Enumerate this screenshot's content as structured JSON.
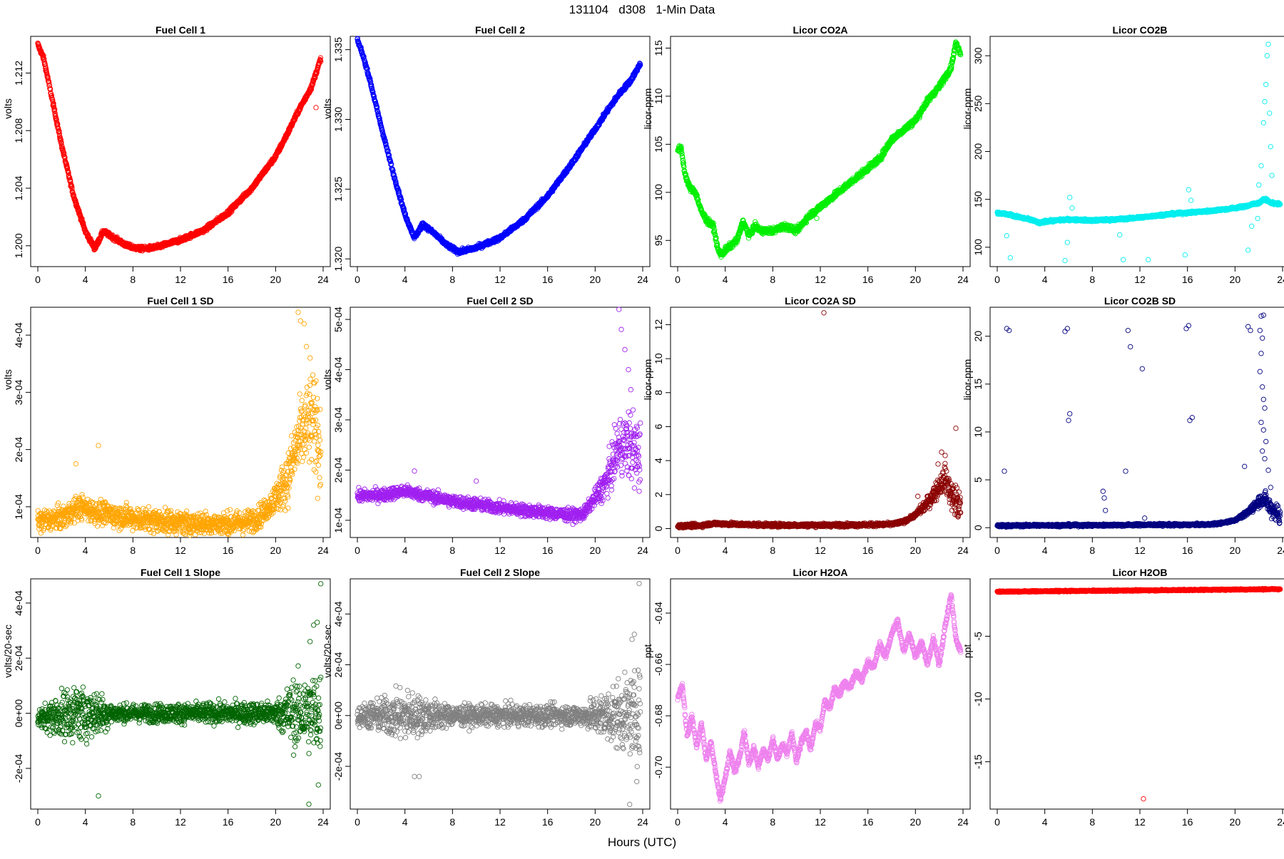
{
  "page": {
    "title": "131104   d308   1-Min Data",
    "xlabel": "Hours (UTC)"
  },
  "xaxis": {
    "range": [
      0,
      24
    ],
    "ticks": [
      0,
      4,
      8,
      12,
      16,
      20,
      24
    ]
  },
  "chart_data": [
    {
      "type": "scatter",
      "title": "Fuel Cell 1",
      "ylabel": "volts",
      "color": "#ff0000",
      "ylim": [
        1.1987,
        1.2144
      ],
      "yticks": [
        1.2,
        1.204,
        1.208,
        1.212
      ],
      "ytick_labels": [
        "1.200",
        "1.204",
        "1.208",
        "1.212"
      ],
      "x": [
        0,
        0.5,
        1,
        2,
        3,
        4,
        4.8,
        5.5,
        6.5,
        7.5,
        8.5,
        9,
        10,
        12,
        14,
        16,
        18,
        20,
        21,
        22,
        23,
        23.8
      ],
      "y": [
        1.214,
        1.213,
        1.211,
        1.207,
        1.2035,
        1.201,
        1.1998,
        1.201,
        1.2005,
        1.2,
        1.1998,
        1.1998,
        1.1999,
        1.2004,
        1.2011,
        1.2023,
        1.204,
        1.2062,
        1.2078,
        1.2095,
        1.211,
        1.213
      ],
      "noise": 0.00015,
      "outliers": [
        [
          23.4,
          1.2096
        ]
      ]
    },
    {
      "type": "scatter",
      "title": "Fuel Cell 2",
      "ylabel": "volts",
      "color": "#0000ff",
      "ylim": [
        1.3196,
        1.3358
      ],
      "yticks": [
        1.32,
        1.325,
        1.33,
        1.335
      ],
      "ytick_labels": [
        "1.320",
        "1.325",
        "1.330",
        "1.335"
      ],
      "x": [
        0,
        0.5,
        1,
        2,
        3,
        4,
        4.8,
        5.5,
        6.5,
        7.5,
        8.5,
        9,
        10,
        12,
        14,
        16,
        18,
        20,
        21,
        22,
        23,
        23.8
      ],
      "y": [
        1.3357,
        1.3345,
        1.333,
        1.3295,
        1.3262,
        1.3232,
        1.3215,
        1.3225,
        1.3218,
        1.321,
        1.3205,
        1.3206,
        1.3208,
        1.3215,
        1.3228,
        1.3245,
        1.3268,
        1.3293,
        1.3306,
        1.3318,
        1.3328,
        1.334
      ],
      "noise": 0.00015,
      "outliers": []
    },
    {
      "type": "scatter",
      "title": "Licor CO2A",
      "ylabel": "licor-ppm",
      "color": "#00ee00",
      "ylim": [
        92.5,
        116
      ],
      "yticks": [
        95,
        100,
        105,
        110,
        115
      ],
      "ytick_labels": [
        "95",
        "100",
        "105",
        "110",
        "115"
      ],
      "x": [
        0,
        0.3,
        0.6,
        1,
        1.5,
        2,
        2.5,
        3,
        3.4,
        3.7,
        4,
        5,
        5.5,
        6,
        6.5,
        7,
        8,
        9,
        10,
        11,
        12,
        13,
        14,
        15,
        16,
        17,
        18,
        19,
        20,
        21,
        22,
        23,
        23.4,
        23.8
      ],
      "y": [
        104.5,
        104.5,
        102,
        100.5,
        100,
        98,
        97,
        96.5,
        94,
        93.5,
        94,
        95,
        97,
        95.5,
        96.5,
        96,
        96,
        96.5,
        96,
        97.5,
        98.5,
        99.5,
        100.5,
        101.5,
        102.5,
        103.5,
        105.5,
        106.5,
        107.5,
        109.5,
        111,
        113,
        115.5,
        114.5
      ],
      "noise": 0.3,
      "outliers": [
        [
          11.7,
          97.3
        ]
      ]
    },
    {
      "type": "scatter",
      "title": "Licor CO2B",
      "ylabel": "licor-ppm",
      "color": "#00eeee",
      "ylim": [
        82,
        318
      ],
      "yticks": [
        100,
        150,
        200,
        250,
        300
      ],
      "ytick_labels": [
        "100",
        "150",
        "200",
        "250",
        "300"
      ],
      "x": [
        0,
        1,
        2,
        3,
        3.6,
        4,
        6,
        8,
        10,
        12,
        14,
        16,
        18,
        20,
        21,
        21.5,
        22,
        22.3,
        22.6,
        22.9,
        23.2,
        23.8
      ],
      "y": [
        136,
        134,
        131,
        128,
        125,
        127,
        129,
        128,
        129,
        131,
        134,
        136,
        138,
        141,
        143,
        145,
        146,
        149,
        150,
        147,
        146,
        145
      ],
      "noise": 1.2,
      "outliers": [
        [
          0.8,
          112
        ],
        [
          1.1,
          89
        ],
        [
          5.7,
          86
        ],
        [
          5.9,
          105
        ],
        [
          6.1,
          152
        ],
        [
          6.3,
          141
        ],
        [
          10.3,
          113
        ],
        [
          10.6,
          87
        ],
        [
          12.7,
          87
        ],
        [
          15.8,
          92
        ],
        [
          16.1,
          160
        ],
        [
          16.3,
          149
        ],
        [
          21.1,
          97
        ],
        [
          21.4,
          122
        ],
        [
          21.9,
          130
        ],
        [
          22.0,
          165
        ],
        [
          22.2,
          185
        ],
        [
          22.4,
          230
        ],
        [
          22.5,
          252
        ],
        [
          22.6,
          270
        ],
        [
          22.7,
          300
        ],
        [
          22.8,
          312
        ],
        [
          22.9,
          240
        ],
        [
          23.0,
          205
        ],
        [
          23.1,
          175
        ]
      ]
    },
    {
      "type": "scatter",
      "title": "Fuel Cell 1 SD",
      "ylabel": "volts",
      "color": "#ffa500",
      "ylim": [
        5e-05,
        0.000445
      ],
      "yticks": [
        0.0001,
        0.0002,
        0.0003,
        0.0004
      ],
      "ytick_labels": [
        "1e-04",
        "2e-04",
        "3e-04",
        "4e-04"
      ],
      "x": [
        0,
        2,
        3.5,
        5,
        8,
        12,
        16,
        18,
        19,
        20,
        21,
        22,
        23,
        23.8
      ],
      "y": [
        7.5e-05,
        8e-05,
        0.0001,
        9e-05,
        8e-05,
        7.2e-05,
        7e-05,
        7.5e-05,
        9e-05,
        0.000115,
        0.00015,
        0.00022,
        0.00025,
        0.00021
      ],
      "noise": 2e-05,
      "bigspread": [
        19.5,
        7e-05
      ],
      "outliers": [
        [
          5.1,
          0.000207
        ],
        [
          3.2,
          0.000175
        ],
        [
          21.9,
          0.00044
        ],
        [
          22.1,
          0.000425
        ],
        [
          22.4,
          0.00042
        ],
        [
          22.6,
          0.00038
        ],
        [
          22.9,
          0.00036
        ],
        [
          23.4,
          0.00032
        ]
      ]
    },
    {
      "type": "scatter",
      "title": "Fuel Cell 2 SD",
      "ylabel": "volts",
      "color": "#a020f0",
      "ylim": [
        7e-05,
        0.00052
      ],
      "yticks": [
        0.0001,
        0.0002,
        0.0003,
        0.0004,
        0.0005
      ],
      "ytick_labels": [
        "1e-04",
        "2e-04",
        "3e-04",
        "4e-04",
        "5e-04"
      ],
      "x": [
        0,
        2,
        4,
        6,
        8,
        10,
        12,
        14,
        16,
        18,
        19,
        20,
        21,
        22,
        23,
        23.8
      ],
      "y": [
        0.000148,
        0.00015,
        0.000158,
        0.000148,
        0.000138,
        0.000132,
        0.000125,
        0.00012,
        0.000115,
        0.00011,
        0.000112,
        0.000145,
        0.00018,
        0.00025,
        0.00025,
        0.00022
      ],
      "noise": 1.2e-05,
      "bigspread": [
        19.7,
        7e-05
      ],
      "outliers": [
        [
          10,
          0.000178
        ],
        [
          4.8,
          0.000198
        ],
        [
          22.0,
          0.00052
        ],
        [
          22.2,
          0.00048
        ],
        [
          22.5,
          0.00044
        ],
        [
          22.8,
          0.0004
        ],
        [
          23.0,
          0.00036
        ]
      ]
    },
    {
      "type": "scatter",
      "title": "Licor CO2A SD",
      "ylabel": "licor-ppm",
      "color": "#8b0000",
      "ylim": [
        -0.4,
        12.9
      ],
      "yticks": [
        0,
        2,
        4,
        6,
        8,
        10,
        12
      ],
      "ytick_labels": [
        "0",
        "2",
        "4",
        "6",
        "8",
        "10",
        "12"
      ],
      "x": [
        0,
        2,
        3,
        5,
        8,
        12,
        16,
        18,
        19,
        20,
        21,
        22,
        22.5,
        23,
        23.8
      ],
      "y": [
        0.15,
        0.18,
        0.3,
        0.25,
        0.2,
        0.2,
        0.22,
        0.25,
        0.4,
        0.8,
        1.5,
        2.5,
        3.0,
        2.0,
        1.2
      ],
      "noise": 0.1,
      "bigspread": [
        19.8,
        0.9
      ],
      "outliers": [
        [
          12.3,
          12.7
        ],
        [
          23.4,
          5.9
        ],
        [
          22.2,
          4.5
        ],
        [
          22.5,
          4.3
        ],
        [
          21.9,
          3.8
        ],
        [
          20.2,
          1.9
        ]
      ]
    },
    {
      "type": "scatter",
      "title": "Licor CO2B SD",
      "ylabel": "licor-ppm",
      "color": "#000080",
      "ylim": [
        -0.8,
        22.8
      ],
      "yticks": [
        0,
        5,
        10,
        15,
        20
      ],
      "ytick_labels": [
        "0",
        "5",
        "10",
        "15",
        "20"
      ],
      "x": [
        0,
        4,
        8,
        12,
        16,
        18,
        19,
        20,
        21,
        22,
        22.5,
        23,
        23.8
      ],
      "y": [
        0.2,
        0.25,
        0.25,
        0.3,
        0.3,
        0.35,
        0.5,
        0.8,
        1.5,
        2.8,
        3.0,
        2.0,
        1.3
      ],
      "noise": 0.12,
      "bigspread": [
        20.3,
        1.0
      ],
      "outliers": [
        [
          0.6,
          5.9
        ],
        [
          0.8,
          20.8
        ],
        [
          1.0,
          20.6
        ],
        [
          5.7,
          20.5
        ],
        [
          5.9,
          20.8
        ],
        [
          6.0,
          11.2
        ],
        [
          6.1,
          11.9
        ],
        [
          8.9,
          3.8
        ],
        [
          9.0,
          3.1
        ],
        [
          9.1,
          1.8
        ],
        [
          10.8,
          5.9
        ],
        [
          11.0,
          20.6
        ],
        [
          11.2,
          18.9
        ],
        [
          12.2,
          16.6
        ],
        [
          12.4,
          1.0
        ],
        [
          15.9,
          20.8
        ],
        [
          16.1,
          21.1
        ],
        [
          16.2,
          11.2
        ],
        [
          16.4,
          11.5
        ],
        [
          20.8,
          6.4
        ],
        [
          21.1,
          21.0
        ],
        [
          21.3,
          20.6
        ],
        [
          22.1,
          20.6
        ],
        [
          22.2,
          22.1
        ],
        [
          22.4,
          22.2
        ],
        [
          22.3,
          19.8
        ],
        [
          22.2,
          18.2
        ],
        [
          22.1,
          16.3
        ],
        [
          22.3,
          14.7
        ],
        [
          22.4,
          13.4
        ],
        [
          22.5,
          12.5
        ],
        [
          22.2,
          11.0
        ],
        [
          22.4,
          10.2
        ],
        [
          22.6,
          9.0
        ],
        [
          22.3,
          8.0
        ],
        [
          22.5,
          7.2
        ],
        [
          22.8,
          6.0
        ],
        [
          23.0,
          4.2
        ]
      ]
    },
    {
      "type": "scatter",
      "title": "Fuel Cell 1 Slope",
      "ylabel": "volts/20-sec",
      "color": "#006400",
      "ylim": [
        -0.00034,
        0.00048
      ],
      "yticks": [
        -0.0002,
        0,
        0.0002,
        0.0004
      ],
      "ytick_labels": [
        "-2e-04",
        "0e+00",
        "2e-04",
        "4e-04"
      ],
      "x": [
        0,
        3,
        6,
        10,
        14,
        18,
        20,
        21,
        23.8
      ],
      "y": [
        -2e-05,
        0,
        0,
        0,
        0,
        0,
        0,
        0,
        0
      ],
      "noise": 2.5e-05,
      "bigspread": [
        0,
        0
      ],
      "spread": [
        [
          0,
          3e-05
        ],
        [
          1.5,
          7e-05
        ],
        [
          3,
          0.0001
        ],
        [
          5,
          8e-05
        ],
        [
          6.5,
          3e-05
        ],
        [
          20,
          4e-05
        ],
        [
          21.5,
          0.00012
        ],
        [
          23.8,
          0.00015
        ]
      ],
      "outliers": [
        [
          5.1,
          -0.0003
        ],
        [
          23.8,
          0.00047
        ],
        [
          23.2,
          0.00032
        ],
        [
          23.5,
          0.00033
        ],
        [
          22.8,
          -0.00033
        ],
        [
          22.9,
          0.00026
        ],
        [
          23.6,
          -0.00026
        ]
      ]
    },
    {
      "type": "scatter",
      "title": "Fuel Cell 2 Slope",
      "ylabel": "volts/20-sec",
      "color": "#808080",
      "ylim": [
        -0.00036,
        0.00053
      ],
      "yticks": [
        -0.0002,
        0,
        0.0002,
        0.0004
      ],
      "ytick_labels": [
        "-2e-04",
        "0e+00",
        "2e-04",
        "4e-04"
      ],
      "x": [
        0,
        3,
        6,
        10,
        14,
        18,
        20,
        21,
        23.8
      ],
      "y": [
        0,
        0,
        0,
        0,
        0,
        0,
        0,
        0,
        0
      ],
      "noise": 2.5e-05,
      "bigspread": [
        0,
        0
      ],
      "spread": [
        [
          0,
          4e-05
        ],
        [
          1.5,
          6e-05
        ],
        [
          4,
          0.0001
        ],
        [
          5.5,
          7e-05
        ],
        [
          8,
          4e-05
        ],
        [
          19,
          4e-05
        ],
        [
          21.5,
          0.00012
        ],
        [
          23.8,
          0.00016
        ]
      ],
      "outliers": [
        [
          23.7,
          0.00052
        ],
        [
          4.8,
          -0.00024
        ],
        [
          5.2,
          -0.00024
        ],
        [
          22.9,
          -0.00035
        ],
        [
          23.3,
          0.00032
        ],
        [
          23.5,
          -0.00026
        ],
        [
          23.1,
          0.0003
        ]
      ]
    },
    {
      "type": "scatter",
      "title": "Licor H2OA",
      "ylabel": "ppt",
      "color": "#ee82ee",
      "ylim": [
        -0.7155,
        -0.6275
      ],
      "yticks": [
        -0.7,
        -0.68,
        -0.66,
        -0.64
      ],
      "ytick_labels": [
        "-0.70",
        "-0.68",
        "-0.66",
        "-0.64"
      ],
      "x": [
        0,
        0.4,
        0.8,
        1.2,
        1.6,
        2.0,
        2.4,
        2.8,
        3.2,
        3.6,
        4.0,
        4.4,
        4.8,
        5.2,
        5.6,
        6.0,
        6.4,
        6.8,
        7.2,
        7.6,
        8.0,
        8.4,
        8.8,
        9.2,
        9.6,
        10.0,
        10.4,
        10.8,
        11.2,
        11.6,
        12.0,
        12.4,
        12.8,
        13.2,
        13.6,
        14,
        14.5,
        15,
        15.5,
        16,
        16.5,
        17,
        17.5,
        18,
        18.5,
        19,
        19.5,
        20,
        20.5,
        21,
        21.5,
        22,
        22.5,
        23,
        23.4,
        23.8
      ],
      "y": [
        -0.673,
        -0.668,
        -0.688,
        -0.68,
        -0.692,
        -0.683,
        -0.697,
        -0.69,
        -0.702,
        -0.713,
        -0.704,
        -0.694,
        -0.702,
        -0.696,
        -0.686,
        -0.699,
        -0.692,
        -0.7,
        -0.693,
        -0.697,
        -0.689,
        -0.697,
        -0.691,
        -0.695,
        -0.687,
        -0.698,
        -0.69,
        -0.686,
        -0.693,
        -0.683,
        -0.685,
        -0.674,
        -0.677,
        -0.669,
        -0.672,
        -0.667,
        -0.669,
        -0.663,
        -0.666,
        -0.659,
        -0.661,
        -0.652,
        -0.657,
        -0.648,
        -0.643,
        -0.655,
        -0.648,
        -0.657,
        -0.651,
        -0.66,
        -0.65,
        -0.66,
        -0.645,
        -0.633,
        -0.65,
        -0.655
      ],
      "noise": 0.0012,
      "outliers": []
    },
    {
      "type": "scatter",
      "title": "Licor H2OB",
      "ylabel": "ppt",
      "color": "#ff0000",
      "ylim": [
        -18.6,
        -0.6
      ],
      "yticks": [
        -15,
        -10,
        -5
      ],
      "ytick_labels": [
        "-15",
        "-10",
        "-5"
      ],
      "x": [
        0,
        12,
        23.8
      ],
      "y": [
        -1.45,
        -1.35,
        -1.25
      ],
      "noise": 0.05,
      "outliers": [
        [
          12.3,
          -17.95
        ]
      ]
    }
  ]
}
